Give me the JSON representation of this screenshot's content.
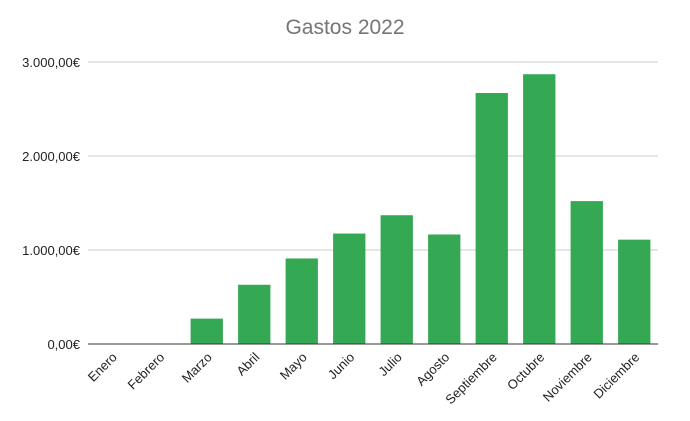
{
  "chart_data": {
    "type": "bar",
    "title": "Gastos 2022",
    "xlabel": "",
    "ylabel": "",
    "categories": [
      "Enero",
      "Febrero",
      "Marzo",
      "Abril",
      "Mayo",
      "Junio",
      "Julio",
      "Agosto",
      "Septiembre",
      "Octubre",
      "Noviembre",
      "Diciembre"
    ],
    "values": [
      0,
      0,
      270,
      630,
      910,
      1175,
      1370,
      1165,
      2670,
      2870,
      1520,
      1110
    ],
    "ylim": [
      0,
      3000
    ],
    "yticks": [
      0,
      1000,
      2000,
      3000
    ],
    "ytick_labels": [
      "0,00€",
      "1.000,00€",
      "2.000,00€",
      "3.000,00€"
    ],
    "grid": true,
    "legend": "none",
    "colors": {
      "bar": "#34a853",
      "grid": "#cccccc",
      "baseline": "#333333",
      "title": "#757575",
      "label": "#222222"
    }
  }
}
